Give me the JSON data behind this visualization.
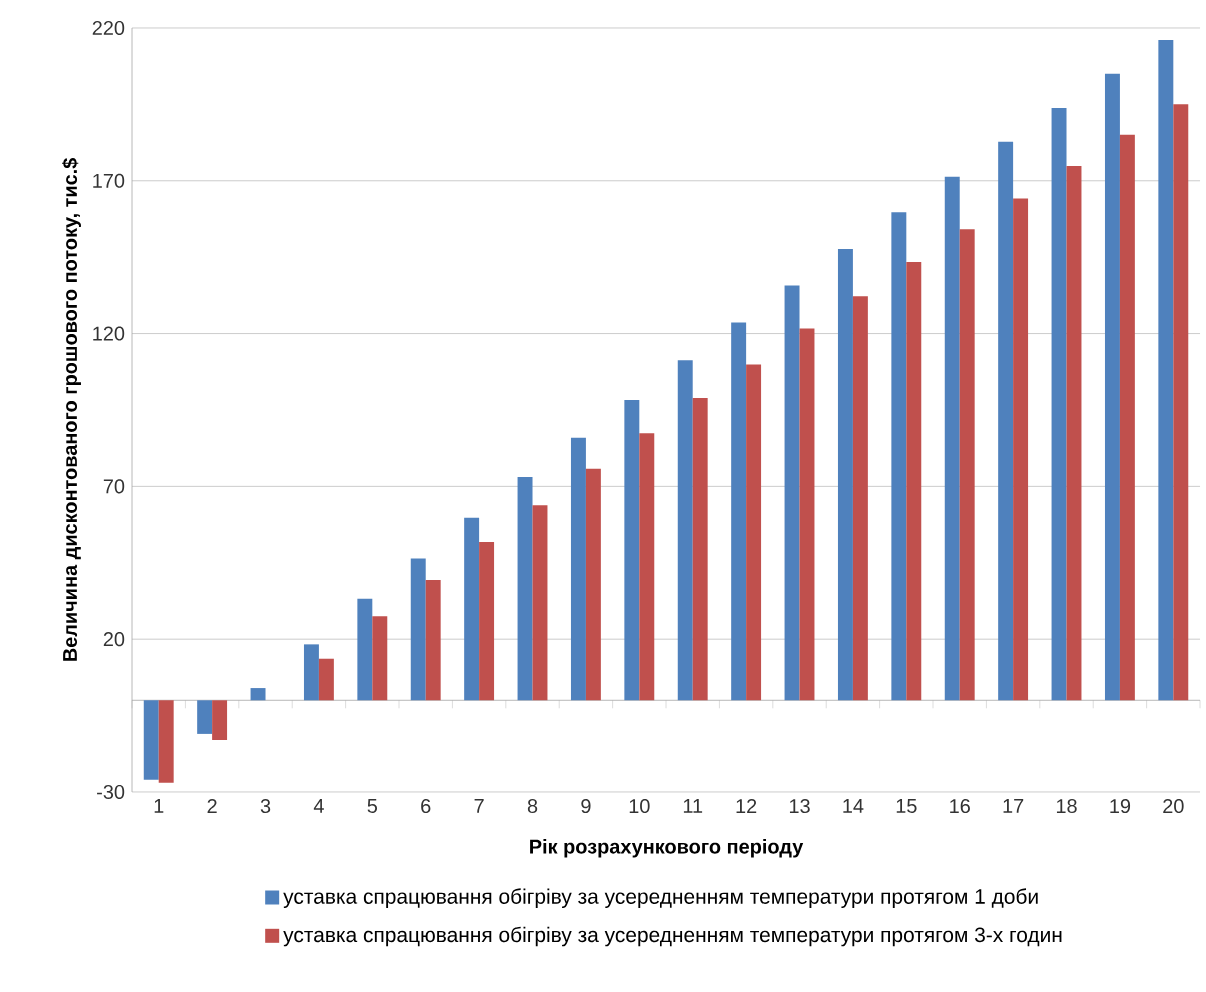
{
  "chart_data": {
    "type": "bar",
    "xlabel": "Рік розрахункового  періоду",
    "ylabel": "Величина дисконтованого грошового потоку, тис.$",
    "categories": [
      "1",
      "2",
      "3",
      "4",
      "5",
      "6",
      "7",
      "8",
      "9",
      "10",
      "11",
      "12",
      "13",
      "14",
      "15",
      "16",
      "17",
      "18",
      "19",
      "20"
    ],
    "series": [
      {
        "name": "уставка спрацювання обігріву за усередненням температури протягом 1 доби",
        "color": "#4f81bd",
        "values": [
          -26,
          -11,
          4,
          18.3,
          33.2,
          46.4,
          59.7,
          73.1,
          85.9,
          98.3,
          111.3,
          123.6,
          135.7,
          147.7,
          159.7,
          171.3,
          182.8,
          193.8,
          205,
          216.1
        ]
      },
      {
        "name": "уставка спрацювання обігріву за усередненням температури протягом 3-х годин",
        "color": "#c0504d",
        "values": [
          -27,
          -13,
          0,
          13.6,
          27.5,
          39.4,
          51.8,
          63.8,
          75.8,
          87.4,
          98.9,
          109.9,
          121.7,
          132.2,
          143.4,
          154.1,
          164.2,
          174.8,
          185.1,
          195
        ]
      }
    ],
    "ylim": [
      -30,
      220
    ],
    "yticks": [
      -30,
      20,
      70,
      120,
      170,
      220
    ],
    "grid": "y",
    "legend": "bottom"
  }
}
